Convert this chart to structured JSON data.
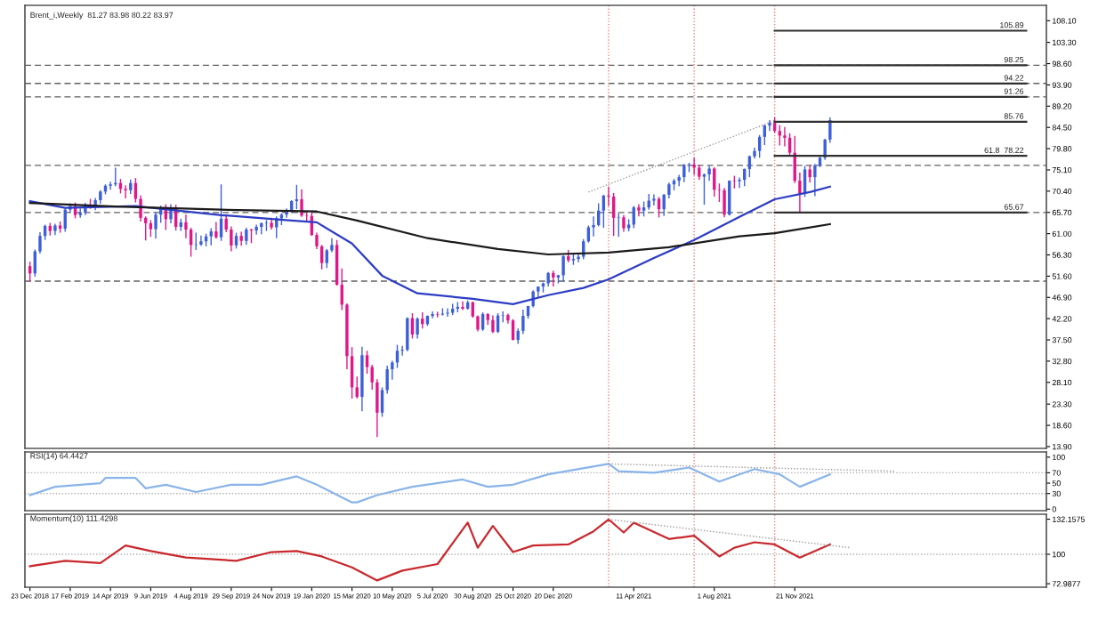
{
  "chart_data": [
    {
      "type": "candlestick",
      "title": "Brent_i,Weekly  81.27 83.98 80.22 83.97",
      "colors": [
        "#e0168a",
        "#3d5fd9",
        "#3d5fd9",
        "#3d5fd9",
        "#e0168a",
        "#3d5fd9",
        "#e0168a",
        "#3d5fd9",
        "#3d5fd9",
        "#e0168a",
        "#3d5fd9",
        "#3d5fd9",
        "#e0168a",
        "#3d5fd9",
        "#3d5fd9",
        "#3d5fd9",
        "#3d5fd9",
        "#3d5fd9",
        "#e0168a",
        "#e0168a",
        "#3d5fd9",
        "#e0168a",
        "#e0168a",
        "#e0168a",
        "#e0168a",
        "#3d5fd9",
        "#3d5fd9",
        "#e0168a",
        "#3d5fd9",
        "#e0168a",
        "#3d5fd9",
        "#e0168a",
        "#e0168a",
        "#3d5fd9",
        "#3d5fd9",
        "#3d5fd9",
        "#3d5fd9",
        "#e0168a",
        "#3d5fd9",
        "#e0168a",
        "#e0168a",
        "#3d5fd9",
        "#e0168a",
        "#3d5fd9",
        "#e0168a",
        "#3d5fd9",
        "#3d5fd9",
        "#3d5fd9",
        "#e0168a",
        "#3d5fd9",
        "#3d5fd9",
        "#3d5fd9",
        "#3d5fd9",
        "#3d5fd9",
        "#e0168a",
        "#e0168a",
        "#e0168a",
        "#e0168a",
        "#e0168a",
        "#3d5fd9",
        "#3d5fd9",
        "#e0168a",
        "#e0168a",
        "#e0168a",
        "#e0168a",
        "#e0168a",
        "#3d5fd9",
        "#e0168a",
        "#e0168a",
        "#e0168a",
        "#3d5fd9",
        "#3d5fd9",
        "#3d5fd9",
        "#3d5fd9",
        "#3d5fd9",
        "#3d5fd9",
        "#e0168a",
        "#3d5fd9",
        "#e0168a",
        "#3d5fd9",
        "#3d5fd9",
        "#e0168a",
        "#3d5fd9",
        "#3d5fd9",
        "#3d5fd9",
        "#3d5fd9",
        "#e0168a",
        "#3d5fd9",
        "#e0168a",
        "#e0168a",
        "#3d5fd9",
        "#e0168a",
        "#e0168a",
        "#3d5fd9",
        "#3d5fd9",
        "#e0168a",
        "#e0168a",
        "#3d5fd9",
        "#3d5fd9",
        "#3d5fd9",
        "#3d5fd9",
        "#3d5fd9",
        "#3d5fd9",
        "#3d5fd9",
        "#e0168a",
        "#3d5fd9",
        "#3d5fd9",
        "#e0168a",
        "#3d5fd9",
        "#3d5fd9",
        "#3d5fd9",
        "#3d5fd9",
        "#3d5fd9",
        "#3d5fd9",
        "#3d5fd9",
        "#e0168a",
        "#e0168a",
        "#3d5fd9",
        "#e0168a",
        "#3d5fd9",
        "#3d5fd9",
        "#e0168a",
        "#3d5fd9",
        "#3d5fd9",
        "#3d5fd9",
        "#e0168a",
        "#3d5fd9",
        "#3d5fd9",
        "#3d5fd9",
        "#3d5fd9",
        "#3d5fd9",
        "#3d5fd9",
        "#e0168a",
        "#e0168a",
        "#3d5fd9",
        "#3d5fd9",
        "#e0168a",
        "#e0168a",
        "#e0168a",
        "#3d5fd9",
        "#e0168a",
        "#3d5fd9",
        "#3d5fd9",
        "#3d5fd9",
        "#3d5fd9",
        "#3d5fd9",
        "#3d5fd9",
        "#3d5fd9",
        "#e0168a",
        "#e0168a",
        "#e0168a",
        "#e0168a",
        "#e0168a",
        "#e0168a",
        "#3d5fd9",
        "#e0168a",
        "#3d5fd9",
        "#3d5fd9",
        "#3d5fd9",
        "#3d5fd9"
      ],
      "x": [
        "2018-12-23",
        "2018-12-30",
        "2019-01-06",
        "2019-01-13",
        "2019-01-20",
        "2019-01-27",
        "2019-02-03",
        "2019-02-10",
        "2019-02-17",
        "2019-02-24",
        "2019-03-03",
        "2019-03-10",
        "2019-03-17",
        "2019-03-24",
        "2019-03-31",
        "2019-04-07",
        "2019-04-14",
        "2019-04-21",
        "2019-04-28",
        "2019-05-05",
        "2019-05-12",
        "2019-05-19",
        "2019-05-26",
        "2019-06-02",
        "2019-06-09",
        "2019-06-16",
        "2019-06-23",
        "2019-06-30",
        "2019-07-07",
        "2019-07-14",
        "2019-07-21",
        "2019-07-28",
        "2019-08-04",
        "2019-08-11",
        "2019-08-18",
        "2019-08-25",
        "2019-09-01",
        "2019-09-08",
        "2019-09-15",
        "2019-09-22",
        "2019-09-29",
        "2019-10-06",
        "2019-10-13",
        "2019-10-20",
        "2019-10-27",
        "2019-11-03",
        "2019-11-10",
        "2019-11-17",
        "2019-11-24",
        "2019-12-01",
        "2019-12-08",
        "2019-12-15",
        "2019-12-22",
        "2019-12-29",
        "2020-01-05",
        "2020-01-12",
        "2020-01-19",
        "2020-01-26",
        "2020-02-02",
        "2020-02-09",
        "2020-02-16",
        "2020-02-23",
        "2020-03-01",
        "2020-03-08",
        "2020-03-15",
        "2020-03-22",
        "2020-03-29",
        "2020-04-05",
        "2020-04-12",
        "2020-04-19",
        "2020-04-26",
        "2020-05-03",
        "2020-05-10",
        "2020-05-17",
        "2020-05-24",
        "2020-05-31",
        "2020-06-07",
        "2020-06-14",
        "2020-06-21",
        "2020-06-28",
        "2020-07-05",
        "2020-07-12",
        "2020-07-19",
        "2020-07-26",
        "2020-08-02",
        "2020-08-09",
        "2020-08-16",
        "2020-08-23",
        "2020-08-30",
        "2020-09-06",
        "2020-09-13",
        "2020-09-20",
        "2020-09-27",
        "2020-10-04",
        "2020-10-11",
        "2020-10-18",
        "2020-10-25",
        "2020-11-01",
        "2020-11-08",
        "2020-11-15",
        "2020-11-22",
        "2020-11-29",
        "2020-12-06",
        "2020-12-13",
        "2020-12-20",
        "2020-12-27",
        "2021-01-03",
        "2021-01-10",
        "2021-01-17",
        "2021-01-24",
        "2021-01-31",
        "2021-02-07",
        "2021-02-14",
        "2021-02-21",
        "2021-02-28",
        "2021-03-07",
        "2021-03-14",
        "2021-03-21",
        "2021-03-28",
        "2021-04-04",
        "2021-04-11",
        "2021-04-18",
        "2021-04-25",
        "2021-05-02",
        "2021-05-09",
        "2021-05-16",
        "2021-05-23",
        "2021-05-30",
        "2021-06-06",
        "2021-06-13",
        "2021-06-20",
        "2021-06-27",
        "2021-07-04",
        "2021-07-11",
        "2021-07-18",
        "2021-07-25",
        "2021-08-01",
        "2021-08-08",
        "2021-08-15",
        "2021-08-22",
        "2021-08-29",
        "2021-09-05",
        "2021-09-12",
        "2021-09-19",
        "2021-09-26",
        "2021-10-03",
        "2021-10-10",
        "2021-10-17",
        "2021-10-24",
        "2021-10-31",
        "2021-11-07",
        "2021-11-14",
        "2021-11-21",
        "2021-11-28",
        "2021-12-05",
        "2021-12-12",
        "2021-12-19",
        "2021-12-26",
        "2022-01-02",
        "2022-01-09"
      ],
      "ohlc": [
        [
          53.8,
          54.8,
          50.4,
          52.2
        ],
        [
          52.2,
          57.5,
          51.5,
          57.1
        ],
        [
          57.1,
          61.3,
          56.6,
          60.5
        ],
        [
          60.5,
          63.0,
          59.6,
          62.7
        ],
        [
          62.7,
          63.4,
          60.6,
          61.6
        ],
        [
          61.6,
          63.2,
          60.7,
          62.8
        ],
        [
          62.8,
          63.7,
          61.2,
          62.1
        ],
        [
          62.1,
          66.8,
          61.4,
          66.3
        ],
        [
          66.3,
          67.7,
          65.6,
          67.1
        ],
        [
          67.1,
          67.9,
          64.4,
          65.1
        ],
        [
          65.1,
          66.6,
          64.5,
          65.7
        ],
        [
          65.7,
          67.8,
          65.1,
          67.2
        ],
        [
          67.2,
          68.7,
          66.5,
          67.0
        ],
        [
          67.0,
          68.9,
          66.2,
          68.4
        ],
        [
          68.4,
          70.6,
          67.6,
          70.3
        ],
        [
          70.3,
          71.9,
          69.7,
          71.6
        ],
        [
          71.6,
          72.5,
          70.7,
          71.9
        ],
        [
          71.9,
          75.6,
          71.5,
          72.2
        ],
        [
          72.2,
          73.1,
          69.9,
          70.9
        ],
        [
          70.9,
          71.7,
          68.8,
          70.6
        ],
        [
          70.6,
          73.0,
          69.8,
          72.2
        ],
        [
          72.2,
          73.3,
          67.9,
          68.7
        ],
        [
          68.7,
          69.5,
          63.7,
          64.5
        ],
        [
          64.5,
          64.8,
          59.5,
          63.3
        ],
        [
          63.3,
          64.0,
          60.3,
          62.0
        ],
        [
          62.0,
          65.8,
          59.9,
          65.2
        ],
        [
          65.2,
          67.2,
          63.4,
          66.6
        ],
        [
          66.6,
          67.5,
          61.8,
          64.2
        ],
        [
          64.2,
          67.5,
          63.3,
          66.7
        ],
        [
          66.7,
          67.4,
          61.7,
          62.5
        ],
        [
          62.5,
          64.3,
          61.6,
          63.5
        ],
        [
          63.5,
          65.2,
          60.0,
          61.9
        ],
        [
          61.9,
          62.3,
          55.9,
          58.5
        ],
        [
          58.5,
          61.2,
          57.4,
          58.6
        ],
        [
          58.6,
          60.6,
          58.3,
          59.3
        ],
        [
          59.3,
          61.0,
          58.2,
          60.4
        ],
        [
          60.4,
          62.2,
          58.4,
          61.5
        ],
        [
          61.5,
          63.6,
          59.9,
          60.2
        ],
        [
          60.2,
          71.9,
          59.4,
          64.3
        ],
        [
          64.3,
          65.3,
          61.3,
          61.9
        ],
        [
          61.9,
          62.6,
          57.1,
          58.4
        ],
        [
          58.4,
          61.2,
          57.7,
          60.5
        ],
        [
          60.5,
          61.4,
          58.3,
          59.4
        ],
        [
          59.4,
          62.3,
          58.5,
          61.9
        ],
        [
          61.9,
          62.1,
          58.9,
          61.7
        ],
        [
          61.7,
          63.0,
          60.8,
          62.5
        ],
        [
          62.5,
          63.5,
          60.9,
          63.3
        ],
        [
          63.3,
          64.0,
          61.6,
          63.4
        ],
        [
          63.4,
          64.5,
          61.9,
          62.4
        ],
        [
          62.4,
          64.8,
          60.0,
          64.4
        ],
        [
          64.4,
          65.5,
          62.9,
          65.2
        ],
        [
          65.2,
          66.6,
          64.5,
          66.1
        ],
        [
          66.1,
          68.4,
          65.6,
          68.2
        ],
        [
          68.2,
          71.8,
          66.4,
          68.6
        ],
        [
          68.6,
          70.8,
          64.7,
          65.0
        ],
        [
          65.0,
          65.6,
          63.8,
          64.9
        ],
        [
          64.9,
          65.9,
          60.5,
          60.7
        ],
        [
          60.7,
          61.2,
          57.6,
          58.2
        ],
        [
          58.2,
          58.5,
          53.1,
          54.5
        ],
        [
          54.5,
          57.6,
          53.4,
          57.3
        ],
        [
          57.3,
          60.0,
          56.9,
          58.5
        ],
        [
          58.5,
          59.6,
          49.5,
          49.7
        ],
        [
          49.7,
          53.3,
          44.1,
          45.3
        ],
        [
          45.3,
          45.6,
          31.0,
          33.9
        ],
        [
          33.9,
          35.9,
          24.5,
          27.0
        ],
        [
          27.0,
          29.4,
          24.5,
          24.9
        ],
        [
          24.9,
          36.0,
          21.7,
          34.1
        ],
        [
          34.1,
          35.1,
          30.0,
          31.5
        ],
        [
          31.5,
          32.0,
          26.5,
          28.1
        ],
        [
          28.1,
          28.8,
          16.0,
          21.4
        ],
        [
          21.4,
          27.0,
          20.5,
          26.4
        ],
        [
          26.4,
          31.8,
          25.6,
          31.0
        ],
        [
          31.0,
          32.9,
          28.7,
          32.5
        ],
        [
          32.5,
          36.4,
          31.3,
          35.1
        ],
        [
          35.1,
          36.2,
          34.0,
          35.3
        ],
        [
          35.3,
          42.5,
          35.0,
          42.3
        ],
        [
          42.3,
          43.4,
          37.8,
          38.7
        ],
        [
          38.7,
          42.5,
          37.8,
          42.2
        ],
        [
          42.2,
          43.6,
          40.0,
          41.0
        ],
        [
          41.0,
          42.9,
          40.6,
          42.8
        ],
        [
          42.8,
          43.8,
          42.3,
          43.2
        ],
        [
          43.2,
          43.7,
          42.5,
          43.1
        ],
        [
          43.1,
          44.5,
          42.9,
          43.3
        ],
        [
          43.3,
          44.5,
          42.6,
          43.5
        ],
        [
          43.5,
          45.5,
          43.0,
          44.4
        ],
        [
          44.4,
          45.9,
          43.6,
          44.8
        ],
        [
          44.8,
          46.0,
          44.1,
          44.4
        ],
        [
          44.4,
          46.2,
          44.2,
          45.8
        ],
        [
          45.8,
          46.0,
          42.4,
          42.7
        ],
        [
          42.7,
          42.9,
          39.4,
          39.8
        ],
        [
          39.8,
          43.6,
          39.5,
          43.2
        ],
        [
          43.2,
          43.4,
          40.8,
          41.9
        ],
        [
          41.9,
          42.9,
          39.0,
          39.3
        ],
        [
          39.3,
          43.4,
          39.0,
          42.9
        ],
        [
          42.9,
          43.8,
          41.4,
          43.0
        ],
        [
          43.0,
          43.3,
          41.1,
          41.8
        ],
        [
          41.8,
          42.1,
          37.4,
          37.5
        ],
        [
          37.5,
          40.0,
          36.6,
          39.5
        ],
        [
          39.5,
          44.2,
          38.8,
          42.8
        ],
        [
          42.8,
          45.0,
          42.2,
          45.0
        ],
        [
          45.0,
          48.5,
          44.7,
          48.2
        ],
        [
          48.2,
          49.3,
          46.8,
          49.3
        ],
        [
          49.3,
          50.2,
          48.0,
          50.0
        ],
        [
          50.0,
          52.5,
          49.3,
          52.3
        ],
        [
          52.3,
          52.8,
          49.3,
          51.3
        ],
        [
          51.3,
          51.9,
          50.0,
          51.8
        ],
        [
          51.8,
          56.2,
          50.4,
          56.0
        ],
        [
          56.0,
          57.4,
          54.7,
          55.1
        ],
        [
          55.1,
          56.6,
          54.1,
          55.4
        ],
        [
          55.4,
          56.4,
          54.7,
          55.9
        ],
        [
          55.9,
          59.8,
          55.3,
          59.3
        ],
        [
          59.3,
          62.8,
          59.0,
          62.4
        ],
        [
          62.4,
          64.8,
          60.4,
          62.9
        ],
        [
          62.9,
          67.7,
          62.6,
          66.1
        ],
        [
          66.1,
          69.6,
          62.3,
          69.4
        ],
        [
          69.4,
          71.4,
          67.1,
          69.2
        ],
        [
          69.2,
          70.0,
          60.5,
          64.5
        ],
        [
          64.5,
          65.5,
          60.3,
          64.6
        ],
        [
          64.6,
          65.1,
          61.4,
          62.2
        ],
        [
          62.2,
          64.2,
          61.5,
          63.0
        ],
        [
          63.0,
          67.1,
          62.2,
          66.8
        ],
        [
          66.8,
          67.5,
          64.8,
          66.1
        ],
        [
          66.1,
          68.1,
          64.8,
          66.8
        ],
        [
          66.8,
          69.8,
          66.3,
          68.3
        ],
        [
          68.3,
          69.7,
          67.2,
          68.7
        ],
        [
          68.7,
          69.1,
          64.6,
          66.4
        ],
        [
          66.4,
          69.8,
          64.9,
          69.6
        ],
        [
          69.6,
          72.3,
          68.8,
          71.9
        ],
        [
          71.9,
          73.1,
          70.6,
          72.7
        ],
        [
          72.7,
          74.0,
          71.5,
          73.5
        ],
        [
          73.5,
          76.4,
          72.4,
          76.2
        ],
        [
          76.2,
          76.7,
          74.6,
          76.3
        ],
        [
          76.3,
          77.8,
          74.0,
          75.6
        ],
        [
          75.6,
          76.2,
          72.9,
          73.6
        ],
        [
          73.6,
          74.3,
          67.4,
          74.1
        ],
        [
          74.1,
          76.0,
          72.7,
          75.4
        ],
        [
          75.4,
          75.7,
          69.2,
          70.7
        ],
        [
          70.7,
          72.1,
          68.0,
          70.6
        ],
        [
          70.6,
          71.1,
          64.6,
          65.2
        ],
        [
          65.2,
          72.8,
          65.0,
          72.7
        ],
        [
          72.7,
          73.8,
          71.0,
          72.6
        ],
        [
          72.6,
          73.4,
          71.1,
          72.9
        ],
        [
          72.9,
          75.4,
          71.5,
          75.3
        ],
        [
          75.3,
          78.3,
          73.5,
          78.1
        ],
        [
          78.1,
          80.0,
          77.6,
          79.3
        ],
        [
          79.3,
          82.8,
          77.8,
          82.4
        ],
        [
          82.4,
          85.1,
          80.6,
          84.9
        ],
        [
          84.9,
          86.1,
          83.7,
          85.5
        ],
        [
          85.5,
          86.7,
          83.3,
          83.7
        ],
        [
          83.7,
          85.0,
          80.5,
          82.7
        ],
        [
          82.7,
          84.6,
          80.3,
          82.2
        ],
        [
          82.2,
          83.2,
          78.2,
          78.9
        ],
        [
          78.9,
          82.6,
          72.2,
          72.7
        ],
        [
          72.7,
          74.5,
          65.7,
          69.9
        ],
        [
          69.9,
          76.0,
          69.1,
          75.2
        ],
        [
          75.2,
          76.1,
          72.3,
          73.5
        ],
        [
          73.5,
          76.4,
          69.3,
          76.1
        ],
        [
          76.1,
          78.0,
          75.7,
          77.8
        ],
        [
          77.8,
          82.0,
          77.3,
          81.8
        ],
        [
          81.8,
          86.7,
          81.1,
          86.1
        ]
      ],
      "series": [
        {
          "type": "line",
          "color": "#2c3cc4",
          "x": [
            "2018-12-23",
            "2019-02-10",
            "2019-05-19",
            "2019-09-15",
            "2019-12-22",
            "2020-01-26",
            "2020-03-15",
            "2020-04-26",
            "2020-06-14",
            "2020-08-30",
            "2020-10-25",
            "2020-12-13",
            "2021-01-31",
            "2021-03-07",
            "2021-05-09",
            "2021-07-04",
            "2021-09-05",
            "2021-10-24",
            "2021-12-12",
            "2022-01-09"
          ],
          "values": [
            68.2,
            66.7,
            67.1,
            65.1,
            63.9,
            63.5,
            58.8,
            51.7,
            47.8,
            46.6,
            45.4,
            47.4,
            49.0,
            50.9,
            55.6,
            59.6,
            64.7,
            68.6,
            70.2,
            71.4
          ]
        },
        {
          "type": "line",
          "color": "#1a1a1a",
          "x": [
            "2018-12-23",
            "2019-04-21",
            "2019-09-15",
            "2020-01-26",
            "2020-03-22",
            "2020-06-28",
            "2020-10-04",
            "2020-12-13",
            "2021-03-07",
            "2021-05-30",
            "2021-09-05",
            "2021-10-24",
            "2022-01-09"
          ],
          "values": [
            67.8,
            67.0,
            66.3,
            65.9,
            63.9,
            60.0,
            57.6,
            56.4,
            56.8,
            58.0,
            60.4,
            61.1,
            63.1
          ]
        },
        {
          "type": "line",
          "color": "#9a9a9a",
          "line_style": "dotted",
          "x": [
            "2021-02-07",
            "2021-10-24"
          ],
          "values": [
            70.2,
            86.0
          ]
        },
        {
          "type": "line",
          "color": "#303030",
          "x": [
            "2021-10-24",
            "2022-10-09"
          ],
          "values": [
            105.89,
            105.89
          ]
        },
        {
          "type": "line",
          "color": "#303030",
          "x": [
            "2021-10-24",
            "2022-10-09"
          ],
          "values": [
            98.25,
            98.25
          ]
        },
        {
          "type": "line",
          "color": "#303030",
          "x": [
            "2021-10-24",
            "2022-10-09"
          ],
          "values": [
            94.22,
            94.22
          ]
        },
        {
          "type": "line",
          "color": "#303030",
          "x": [
            "2021-10-24",
            "2022-10-09"
          ],
          "values": [
            91.26,
            91.26
          ]
        },
        {
          "type": "line",
          "color": "#303030",
          "x": [
            "2021-10-24",
            "2022-10-09"
          ],
          "values": [
            85.76,
            85.76
          ]
        },
        {
          "type": "line",
          "color": "#303030",
          "x": [
            "2021-10-24",
            "2022-10-09"
          ],
          "values": [
            78.22,
            78.22
          ]
        },
        {
          "type": "line",
          "color": "#303030",
          "x": [
            "2021-10-24",
            "2022-10-09"
          ],
          "values": [
            65.67,
            65.67
          ]
        }
      ],
      "annotations": [
        {
          "text": "105.89",
          "x": "2022-10-09",
          "y": 105.89
        },
        {
          "text": "98.25",
          "x": "2022-10-09",
          "y": 98.25
        },
        {
          "text": "94.22",
          "x": "2022-10-09",
          "y": 94.22
        },
        {
          "text": "91.26",
          "x": "2022-10-09",
          "y": 91.26
        },
        {
          "text": "85.76",
          "x": "2022-10-09",
          "y": 85.76
        },
        {
          "text": "61.8  78.22",
          "x": "2022-10-09",
          "y": 78.22
        },
        {
          "text": "65.67",
          "x": "2022-10-09",
          "y": 65.67
        }
      ],
      "ref_lines": [
        {
          "axis": "y",
          "value": 98.25,
          "color": "#606060",
          "line_style": "dashed"
        },
        {
          "axis": "y",
          "value": 94.22,
          "color": "#606060",
          "line_style": "dashed"
        },
        {
          "axis": "y",
          "value": 91.26,
          "color": "#606060",
          "line_style": "dashed"
        },
        {
          "axis": "y",
          "value": 76.1,
          "color": "#606060",
          "line_style": "dashed"
        },
        {
          "axis": "y",
          "value": 65.67,
          "color": "#606060",
          "line_style": "dashed"
        },
        {
          "axis": "y",
          "value": 50.5,
          "color": "#606060",
          "line_style": "dashed"
        },
        {
          "axis": "x",
          "value": "2021-03-07",
          "color": "#f08080",
          "line_style": "dotted"
        },
        {
          "axis": "x",
          "value": "2021-07-04",
          "color": "#f08080",
          "line_style": "dotted"
        },
        {
          "axis": "x",
          "value": "2021-10-24",
          "color": "#f08080",
          "line_style": "dotted"
        }
      ],
      "xlim": [
        "2018-12-16",
        "2022-11-06"
      ],
      "ylim": [
        13.5,
        111.5
      ],
      "yticks": [
        {
          "value": 13.9,
          "label": "13.90"
        },
        {
          "value": 18.6,
          "label": "18.60"
        },
        {
          "value": 23.3,
          "label": "23.30"
        },
        {
          "value": 28.1,
          "label": "28.10"
        },
        {
          "value": 32.8,
          "label": "32.80"
        },
        {
          "value": 37.5,
          "label": "37.50"
        },
        {
          "value": 42.2,
          "label": "42.20"
        },
        {
          "value": 46.9,
          "label": "46.90"
        },
        {
          "value": 51.6,
          "label": "51.60"
        },
        {
          "value": 56.3,
          "label": "56.30"
        },
        {
          "value": 61.0,
          "label": "61.00"
        },
        {
          "value": 65.7,
          "label": "65.70"
        },
        {
          "value": 70.4,
          "label": "70.40"
        },
        {
          "value": 75.1,
          "label": "75.10"
        },
        {
          "value": 79.8,
          "label": "79.80"
        },
        {
          "value": 84.5,
          "label": "84.50"
        },
        {
          "value": 89.2,
          "label": "89.20"
        },
        {
          "value": 93.9,
          "label": "93.90"
        },
        {
          "value": 98.6,
          "label": "98.60"
        },
        {
          "value": 103.3,
          "label": "103.30"
        },
        {
          "value": 108.1,
          "label": "108.10"
        }
      ],
      "tick_labels": "y",
      "grid": false
    },
    {
      "type": "line",
      "title": "RSI(14) 64.4427",
      "series": [
        {
          "color": "#8ab4e8",
          "x": [
            "2018-12-23",
            "2019-01-27",
            "2019-03-31",
            "2019-04-07",
            "2019-05-19",
            "2019-06-02",
            "2019-06-30",
            "2019-08-11",
            "2019-09-29",
            "2019-11-10",
            "2019-12-29",
            "2020-01-26",
            "2020-03-15",
            "2020-03-22",
            "2020-04-19",
            "2020-06-07",
            "2020-08-16",
            "2020-09-20",
            "2020-10-25",
            "2020-12-13",
            "2021-03-07",
            "2021-03-21",
            "2021-05-09",
            "2021-06-27",
            "2021-08-08",
            "2021-09-26",
            "2021-10-31",
            "2021-11-28",
            "2022-01-09"
          ],
          "values": [
            27,
            43,
            50,
            60,
            60,
            40,
            47,
            33,
            47,
            47,
            63,
            47,
            13,
            13,
            27,
            43,
            57,
            43,
            47,
            67,
            87,
            73,
            70,
            80,
            53,
            77,
            67,
            43,
            67
          ]
        },
        {
          "color": "#9a9a9a",
          "line_style": "dotted",
          "x": [
            "2021-03-07",
            "2022-04-10"
          ],
          "values": [
            87,
            73
          ]
        }
      ],
      "ref_lines": [
        {
          "axis": "y",
          "value": 70,
          "color": "#b0b0b0",
          "line_style": "dotted"
        },
        {
          "axis": "y",
          "value": 30,
          "color": "#b0b0b0",
          "line_style": "dotted"
        },
        {
          "axis": "x",
          "value": "2021-03-07",
          "color": "#f08080",
          "line_style": "dotted"
        },
        {
          "axis": "x",
          "value": "2021-07-04",
          "color": "#f08080",
          "line_style": "dotted"
        },
        {
          "axis": "x",
          "value": "2021-10-24",
          "color": "#f08080",
          "line_style": "dotted"
        }
      ],
      "xlim": [
        "2018-12-16",
        "2022-11-06"
      ],
      "ylim": [
        -3,
        110
      ],
      "yticks": [
        0,
        30,
        50,
        70,
        100
      ],
      "tick_labels": "y",
      "grid": false
    },
    {
      "type": "line",
      "title": "Momentum(10) 111.4298",
      "series": [
        {
          "color": "#c8282d",
          "x": [
            "2018-12-23",
            "2019-02-10",
            "2019-03-31",
            "2019-05-05",
            "2019-06-09",
            "2019-07-28",
            "2019-10-06",
            "2019-11-24",
            "2019-12-29",
            "2020-02-02",
            "2020-03-15",
            "2020-04-19",
            "2020-05-24",
            "2020-07-12",
            "2020-08-23",
            "2020-09-06",
            "2020-09-27",
            "2020-10-25",
            "2020-11-22",
            "2021-01-10",
            "2021-02-14",
            "2021-03-07",
            "2021-03-28",
            "2021-04-11",
            "2021-05-30",
            "2021-07-04",
            "2021-08-08",
            "2021-08-29",
            "2021-09-26",
            "2021-10-24",
            "2021-11-28",
            "2022-01-09"
          ],
          "values": [
            89,
            94,
            92,
            108,
            103,
            97,
            94,
            102,
            103,
            98,
            88,
            76,
            85,
            91,
            129,
            106,
            126,
            102,
            108,
            109,
            121,
            132,
            120,
            129,
            114,
            117,
            98,
            106,
            111,
            109,
            97,
            109
          ]
        },
        {
          "color": "#9a9a9a",
          "line_style": "dotted",
          "x": [
            "2021-03-07",
            "2022-02-06"
          ],
          "values": [
            132,
            106
          ]
        }
      ],
      "ref_lines": [
        {
          "axis": "y",
          "value": 100,
          "color": "#b0b0b0",
          "line_style": "dotted"
        },
        {
          "axis": "x",
          "value": "2021-03-07",
          "color": "#f08080",
          "line_style": "dotted"
        },
        {
          "axis": "x",
          "value": "2021-07-04",
          "color": "#f08080",
          "line_style": "dotted"
        },
        {
          "axis": "x",
          "value": "2021-10-24",
          "color": "#f08080",
          "line_style": "dotted"
        }
      ],
      "xlim": [
        "2018-12-16",
        "2022-11-06"
      ],
      "ylim": [
        69.8,
        136.7
      ],
      "yticks": [
        72.9877,
        100,
        132.1575
      ],
      "xticks": [
        {
          "value": "2018-12-23",
          "label": "23 Dec 2018"
        },
        {
          "value": "2019-02-17",
          "label": "17 Feb 2019"
        },
        {
          "value": "2019-04-14",
          "label": "14 Apr 2019"
        },
        {
          "value": "2019-06-09",
          "label": "9 Jun 2019"
        },
        {
          "value": "2019-08-04",
          "label": "4 Aug 2019"
        },
        {
          "value": "2019-09-29",
          "label": "29 Sep 2019"
        },
        {
          "value": "2019-11-24",
          "label": "24 Nov 2019"
        },
        {
          "value": "2020-01-19",
          "label": "19 Jan 2020"
        },
        {
          "value": "2020-03-15",
          "label": "15 Mar 2020"
        },
        {
          "value": "2020-05-10",
          "label": "10 May 2020"
        },
        {
          "value": "2020-07-05",
          "label": "5 Jul 2020"
        },
        {
          "value": "2020-08-30",
          "label": "30 Aug 2020"
        },
        {
          "value": "2020-10-25",
          "label": "25 Oct 2020"
        },
        {
          "value": "2020-12-20",
          "label": "20 Dec 2020"
        },
        {
          "value": "2021-04-11",
          "label": "11 Apr 2021"
        },
        {
          "value": "2021-08-01",
          "label": "1 Aug 2021"
        },
        {
          "value": "2021-11-21",
          "label": "21 Nov 2021"
        }
      ],
      "grid": false
    }
  ]
}
